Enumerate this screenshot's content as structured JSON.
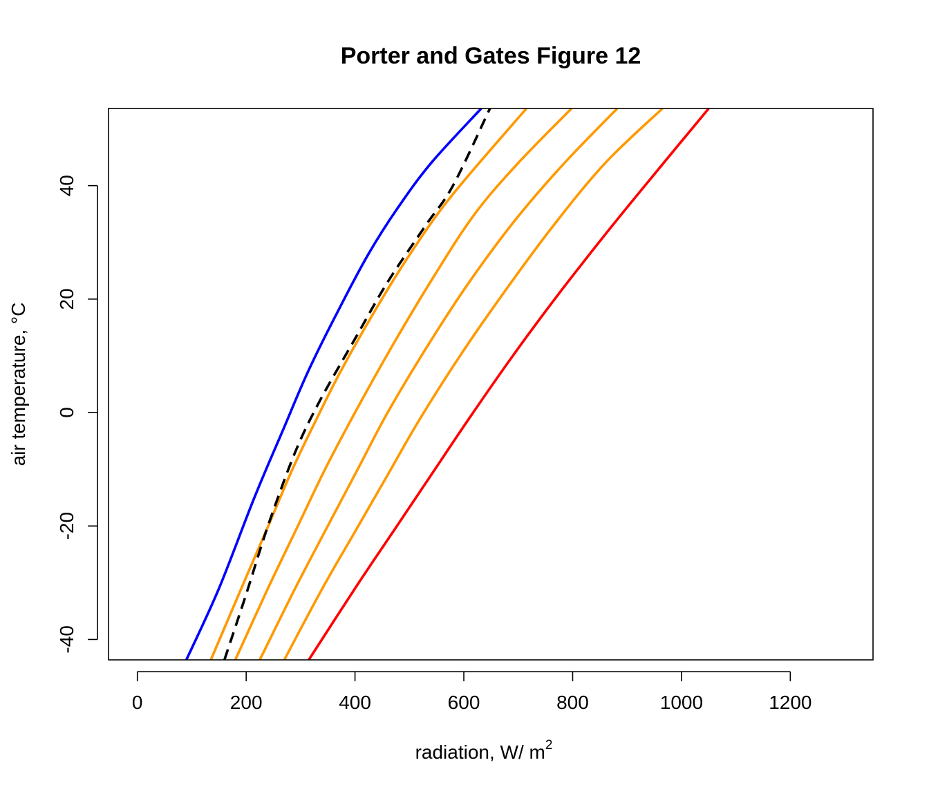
{
  "chart_data": {
    "type": "line",
    "title": "Porter and Gates Figure 12",
    "xlabel": {
      "main": "radiation, W/ m",
      "sup": "2"
    },
    "ylabel": "air temperature, °C",
    "xlim": [
      -53,
      1352
    ],
    "ylim": [
      -43.6,
      53.6
    ],
    "xticks": [
      0,
      200,
      400,
      600,
      800,
      1000,
      1200
    ],
    "yticks": [
      -40,
      -20,
      0,
      20,
      40
    ],
    "xtick_labels": [
      "0",
      "200",
      "400",
      "600",
      "800",
      "1000",
      "1200"
    ],
    "ytick_labels": [
      "-40",
      "-20",
      "0",
      "20",
      "40"
    ],
    "grid": false,
    "legend": "none",
    "series": [
      {
        "color": "#0000ff",
        "dash": "solid",
        "points": [
          [
            90,
            -43.6
          ],
          [
            150,
            -31
          ],
          [
            215,
            -15
          ],
          [
            268,
            -3
          ],
          [
            315,
            7.5
          ],
          [
            372,
            18.5
          ],
          [
            425,
            28
          ],
          [
            478,
            36
          ],
          [
            540,
            44
          ],
          [
            632,
            53.6
          ]
        ]
      },
      {
        "color": "#ff9900",
        "dash": "solid",
        "points": [
          [
            135,
            -43.6
          ],
          [
            200,
            -29
          ],
          [
            245,
            -19
          ],
          [
            285,
            -10
          ],
          [
            330,
            -1
          ],
          [
            375,
            7.5
          ],
          [
            440,
            18.5
          ],
          [
            505,
            28.5
          ],
          [
            580,
            38.5
          ],
          [
            715,
            53.6
          ]
        ]
      },
      {
        "color": "#000000",
        "dash": "dashed",
        "points": [
          [
            160,
            -43.6
          ],
          [
            200,
            -32
          ],
          [
            240,
            -20
          ],
          [
            290,
            -7
          ],
          [
            335,
            2
          ],
          [
            400,
            13
          ],
          [
            460,
            23
          ],
          [
            530,
            33
          ],
          [
            580,
            40
          ],
          [
            648,
            53.6
          ]
        ]
      },
      {
        "color": "#ff9900",
        "dash": "solid",
        "points": [
          [
            180,
            -43.6
          ],
          [
            240,
            -31
          ],
          [
            295,
            -20
          ],
          [
            345,
            -10
          ],
          [
            400,
            0
          ],
          [
            470,
            12
          ],
          [
            545,
            24
          ],
          [
            620,
            35
          ],
          [
            700,
            44
          ],
          [
            798,
            53.6
          ]
        ]
      },
      {
        "color": "#ff9900",
        "dash": "solid",
        "points": [
          [
            225,
            -43.6
          ],
          [
            290,
            -31
          ],
          [
            350,
            -20
          ],
          [
            405,
            -10
          ],
          [
            460,
            0
          ],
          [
            535,
            12
          ],
          [
            610,
            23
          ],
          [
            695,
            34
          ],
          [
            785,
            44
          ],
          [
            882,
            53.6
          ]
        ]
      },
      {
        "color": "#ff9900",
        "dash": "solid",
        "points": [
          [
            270,
            -43.6
          ],
          [
            340,
            -31
          ],
          [
            400,
            -21
          ],
          [
            460,
            -11
          ],
          [
            520,
            -1
          ],
          [
            600,
            11
          ],
          [
            680,
            22
          ],
          [
            765,
            33
          ],
          [
            860,
            44
          ],
          [
            965,
            53.6
          ]
        ]
      },
      {
        "color": "#ff0000",
        "dash": "solid",
        "points": [
          [
            315,
            -43.6
          ],
          [
            400,
            -31
          ],
          [
            470,
            -21
          ],
          [
            540,
            -11
          ],
          [
            610,
            -1
          ],
          [
            690,
            10
          ],
          [
            775,
            21
          ],
          [
            865,
            32
          ],
          [
            950,
            42
          ],
          [
            1050,
            53.6
          ]
        ]
      }
    ]
  }
}
